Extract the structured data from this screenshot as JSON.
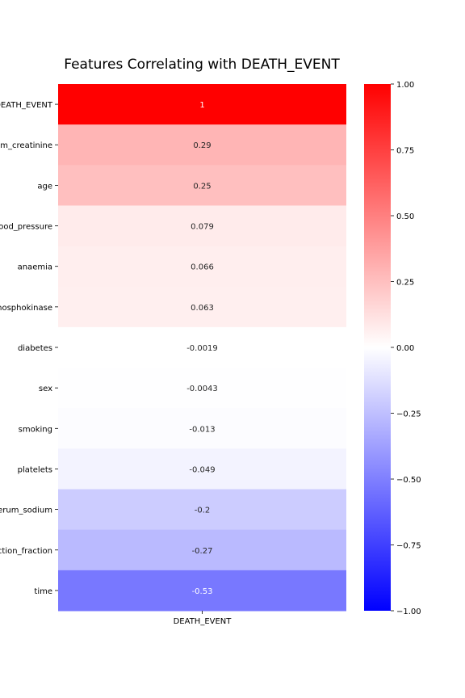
{
  "chart_data": {
    "type": "heatmap",
    "title": "Features Correlating with DEATH_EVENT",
    "xlabel": "",
    "ylabel": "",
    "columns": [
      "DEATH_EVENT"
    ],
    "rows": [
      {
        "label": "DEATH_EVENT",
        "value": 1.0,
        "text": "1"
      },
      {
        "label": "serum_creatinine",
        "value": 0.29,
        "text": "0.29"
      },
      {
        "label": "age",
        "value": 0.25,
        "text": "0.25"
      },
      {
        "label": "high_blood_pressure",
        "value": 0.079,
        "text": "0.079"
      },
      {
        "label": "anaemia",
        "value": 0.066,
        "text": "0.066"
      },
      {
        "label": "creatinine_phosphokinase",
        "value": 0.063,
        "text": "0.063"
      },
      {
        "label": "diabetes",
        "value": -0.0019,
        "text": "-0.0019"
      },
      {
        "label": "sex",
        "value": -0.0043,
        "text": "-0.0043"
      },
      {
        "label": "smoking",
        "value": -0.013,
        "text": "-0.013"
      },
      {
        "label": "platelets",
        "value": -0.049,
        "text": "-0.049"
      },
      {
        "label": "serum_sodium",
        "value": -0.2,
        "text": "-0.2"
      },
      {
        "label": "ejection_fraction",
        "value": -0.27,
        "text": "-0.27"
      },
      {
        "label": "time",
        "value": -0.53,
        "text": "-0.53"
      }
    ],
    "colorbar": {
      "vmin": -1.0,
      "vmax": 1.0,
      "ticks": [
        1.0,
        0.75,
        0.5,
        0.25,
        0.0,
        -0.25,
        -0.5,
        -0.75,
        -1.0
      ],
      "tick_labels": [
        "1.00",
        "0.75",
        "0.50",
        "0.25",
        "0.00",
        "−0.25",
        "−0.50",
        "−0.75",
        "−1.00"
      ],
      "colormap": "bwr"
    },
    "colors": {
      "low": "#0000ff",
      "mid": "#ffffff",
      "high": "#ff0000"
    }
  }
}
